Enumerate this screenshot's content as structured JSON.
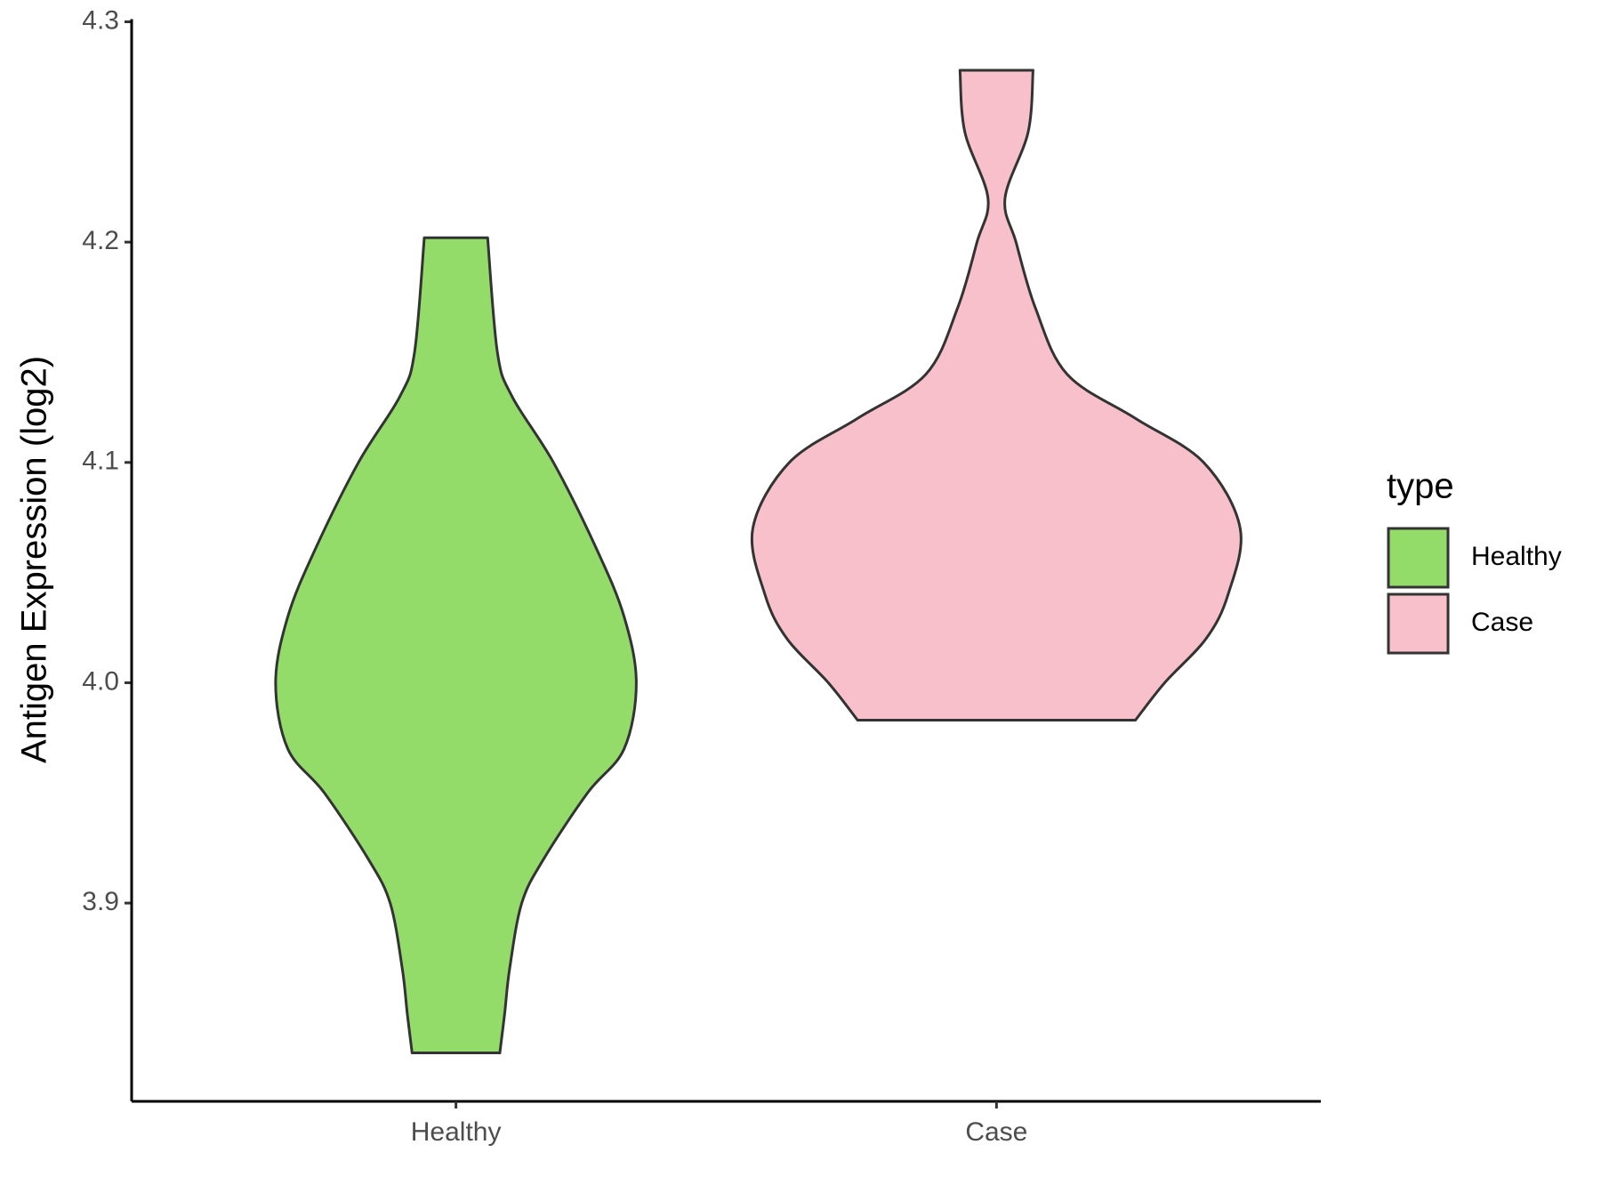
{
  "chart_data": {
    "type": "violin",
    "y_label": "Antigen Expression (log2)",
    "categories": [
      "Healthy",
      "Case"
    ],
    "legend_title": "type",
    "legend": "right",
    "series": [
      {
        "name": "Healthy",
        "color": "#93dc6a",
        "y": [
          3.832,
          3.85,
          3.87,
          3.9,
          3.92,
          3.95,
          3.97,
          4.0,
          4.03,
          4.06,
          4.1,
          4.13,
          4.15,
          4.202
        ],
        "density": [
          0.18,
          0.2,
          0.22,
          0.27,
          0.36,
          0.54,
          0.69,
          0.74,
          0.69,
          0.58,
          0.4,
          0.23,
          0.17,
          0.13
        ]
      },
      {
        "name": "Case",
        "color": "#f7c0cb",
        "y": [
          3.983,
          4.0,
          4.02,
          4.04,
          4.07,
          4.1,
          4.12,
          4.14,
          4.17,
          4.2,
          4.22,
          4.25,
          4.278
        ],
        "density": [
          0.57,
          0.69,
          0.86,
          0.95,
          1.0,
          0.85,
          0.57,
          0.29,
          0.16,
          0.08,
          0.035,
          0.13,
          0.15
        ]
      }
    ],
    "ylim": [
      3.81,
      4.3
    ],
    "yticks": [
      {
        "value": 3.9,
        "label": "3.9"
      },
      {
        "value": 4.0,
        "label": "4.0"
      },
      {
        "value": 4.1,
        "label": "4.1"
      },
      {
        "value": 4.2,
        "label": "4.2"
      },
      {
        "value": 4.3,
        "label": "4.3"
      }
    ],
    "grid": false
  }
}
